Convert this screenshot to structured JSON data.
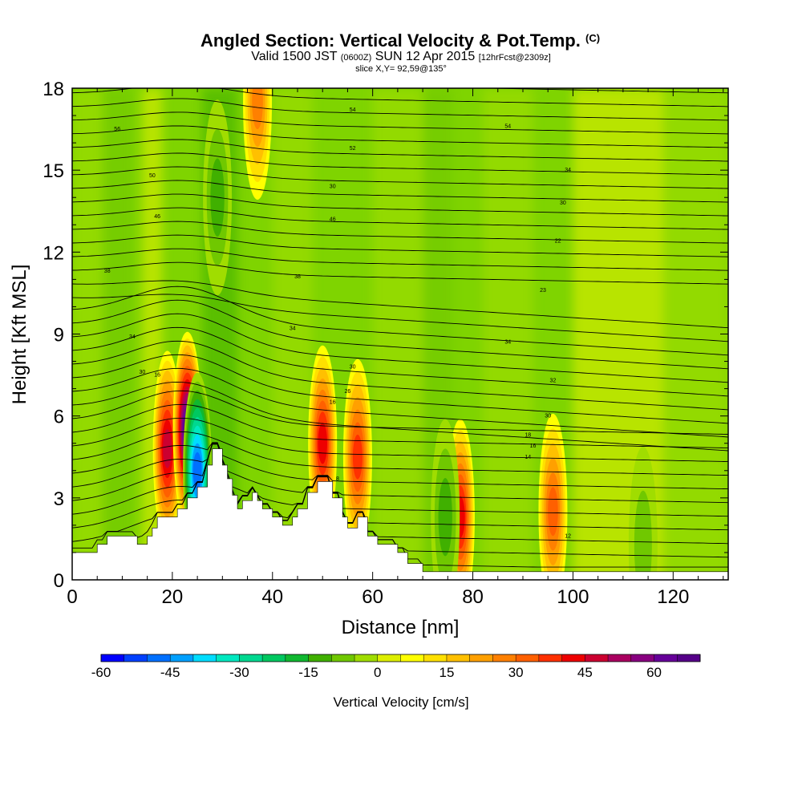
{
  "header": {
    "title_main": "Angled Section: Vertical Velocity & Pot.Temp.",
    "title_tag": "(C)",
    "valid_prefix": "Valid 1500 JST",
    "valid_zulu": "(0600Z)",
    "valid_date": "SUN 12 Apr 2015",
    "forecast_tag": "[12hrFcst@2309z]",
    "slice_info": "slice X,Y= 92,59@135°"
  },
  "colors": {
    "background": "#7fd400",
    "terrain": "#ffffff",
    "frame": "#000000"
  },
  "chart_data": {
    "type": "heatmap",
    "title": "Angled Section: Vertical Velocity & Pot.Temp.",
    "xlabel": "Distance [nm]",
    "ylabel": "Height [Kft MSL]",
    "xlim": [
      0,
      131
    ],
    "ylim": [
      0,
      18
    ],
    "xticks": [
      0,
      20,
      40,
      60,
      80,
      100,
      120
    ],
    "yticks": [
      0,
      3,
      6,
      9,
      12,
      15,
      18
    ],
    "colorbar": {
      "label": "Vertical Velocity [cm/s]",
      "min": -60,
      "max": 70,
      "step": 5,
      "tick_values": [
        -60,
        -45,
        -30,
        -15,
        0,
        15,
        30,
        45,
        60
      ],
      "colors": [
        "#0000ff",
        "#0040ff",
        "#0070ff",
        "#00a0ff",
        "#00ddff",
        "#00e8c0",
        "#00d890",
        "#00c860",
        "#10b830",
        "#40b000",
        "#70c800",
        "#a0dd00",
        "#ddee00",
        "#ffff00",
        "#ffe000",
        "#ffc000",
        "#ffa000",
        "#ff8000",
        "#ff6000",
        "#ff3000",
        "#ee0000",
        "#cc0030",
        "#aa0060",
        "#880080",
        "#660099",
        "#550088"
      ]
    },
    "updrafts": [
      {
        "x": 19,
        "y": 4.8,
        "value": 45
      },
      {
        "x": 23,
        "y": 5.5,
        "value": 65
      },
      {
        "x": 37,
        "y": 17.5,
        "value": 25
      },
      {
        "x": 50,
        "y": 5.0,
        "value": 40
      },
      {
        "x": 57,
        "y": 4.5,
        "value": 35
      },
      {
        "x": 77.5,
        "y": 2.3,
        "value": 40
      },
      {
        "x": 96,
        "y": 2.5,
        "value": 30
      }
    ],
    "downdrafts": [
      {
        "x": 25,
        "y": 4.0,
        "value": -50
      },
      {
        "x": 29,
        "y": 14.0,
        "value": -15
      },
      {
        "x": 74.5,
        "y": 2.3,
        "value": -15
      },
      {
        "x": 114,
        "y": 1.3,
        "value": -10
      }
    ],
    "terrain_height": [
      [
        0,
        1.0
      ],
      [
        5,
        1.0
      ],
      [
        5,
        1.3
      ],
      [
        7,
        1.3
      ],
      [
        7,
        1.6
      ],
      [
        13,
        1.6
      ],
      [
        13,
        1.3
      ],
      [
        15,
        1.3
      ],
      [
        15,
        1.6
      ],
      [
        16,
        1.6
      ],
      [
        16,
        1.9
      ],
      [
        17,
        1.9
      ],
      [
        17,
        2.3
      ],
      [
        21,
        2.3
      ],
      [
        21,
        2.6
      ],
      [
        23,
        2.6
      ],
      [
        23,
        3.0
      ],
      [
        25,
        3.0
      ],
      [
        25,
        3.4
      ],
      [
        27,
        3.4
      ],
      [
        27,
        4.2
      ],
      [
        28,
        4.2
      ],
      [
        28,
        4.8
      ],
      [
        30,
        4.8
      ],
      [
        30,
        4.2
      ],
      [
        31,
        4.2
      ],
      [
        31,
        3.7
      ],
      [
        32,
        3.7
      ],
      [
        32,
        3.1
      ],
      [
        33,
        3.1
      ],
      [
        33,
        2.6
      ],
      [
        34,
        2.6
      ],
      [
        34,
        2.9
      ],
      [
        36,
        2.9
      ],
      [
        36,
        3.2
      ],
      [
        37,
        3.2
      ],
      [
        37,
        2.9
      ],
      [
        38,
        2.9
      ],
      [
        38,
        2.6
      ],
      [
        40,
        2.6
      ],
      [
        40,
        2.3
      ],
      [
        42,
        2.3
      ],
      [
        42,
        2.0
      ],
      [
        44,
        2.0
      ],
      [
        44,
        2.3
      ],
      [
        45,
        2.3
      ],
      [
        45,
        2.6
      ],
      [
        47,
        2.6
      ],
      [
        47,
        3.2
      ],
      [
        49,
        3.2
      ],
      [
        49,
        3.6
      ],
      [
        52,
        3.6
      ],
      [
        52,
        3.0
      ],
      [
        54,
        3.0
      ],
      [
        54,
        2.3
      ],
      [
        55,
        2.3
      ],
      [
        55,
        1.9
      ],
      [
        57,
        1.9
      ],
      [
        57,
        2.3
      ],
      [
        59,
        2.3
      ],
      [
        59,
        1.6
      ],
      [
        61,
        1.6
      ],
      [
        61,
        1.3
      ],
      [
        65,
        1.3
      ],
      [
        65,
        1.0
      ],
      [
        67,
        1.0
      ],
      [
        67,
        0.6
      ],
      [
        70,
        0.6
      ],
      [
        70,
        0.3
      ],
      [
        131,
        0.3
      ]
    ],
    "isentrope_labels": [
      {
        "text": "56",
        "x": 9,
        "y": 16.5
      },
      {
        "text": "54",
        "x": 56,
        "y": 17.2
      },
      {
        "text": "54",
        "x": 87,
        "y": 16.6
      },
      {
        "text": "50",
        "x": 16,
        "y": 14.8
      },
      {
        "text": "52",
        "x": 56,
        "y": 15.8
      },
      {
        "text": "34",
        "x": 99,
        "y": 15.0
      },
      {
        "text": "30",
        "x": 52,
        "y": 14.4
      },
      {
        "text": "30",
        "x": 98,
        "y": 13.8
      },
      {
        "text": "46",
        "x": 17,
        "y": 13.3
      },
      {
        "text": "46",
        "x": 52,
        "y": 13.2
      },
      {
        "text": "22",
        "x": 97,
        "y": 12.4
      },
      {
        "text": "38",
        "x": 7,
        "y": 11.3
      },
      {
        "text": "38",
        "x": 45,
        "y": 11.1
      },
      {
        "text": "23",
        "x": 94,
        "y": 10.6
      },
      {
        "text": "34",
        "x": 12,
        "y": 8.9
      },
      {
        "text": "34",
        "x": 44,
        "y": 9.2
      },
      {
        "text": "34",
        "x": 87,
        "y": 8.7
      },
      {
        "text": "30",
        "x": 14,
        "y": 7.6
      },
      {
        "text": "30",
        "x": 56,
        "y": 7.8
      },
      {
        "text": "32",
        "x": 96,
        "y": 7.3
      },
      {
        "text": "16",
        "x": 17,
        "y": 7.5
      },
      {
        "text": "26",
        "x": 55,
        "y": 6.9
      },
      {
        "text": "30",
        "x": 95,
        "y": 6.0
      },
      {
        "text": "16",
        "x": 52,
        "y": 6.5
      },
      {
        "text": "18",
        "x": 91,
        "y": 5.3
      },
      {
        "text": "16",
        "x": 92,
        "y": 4.9
      },
      {
        "text": "14",
        "x": 91,
        "y": 4.5
      },
      {
        "text": "12",
        "x": 99,
        "y": 1.6
      },
      {
        "text": "8",
        "x": 53,
        "y": 3.7
      }
    ]
  }
}
